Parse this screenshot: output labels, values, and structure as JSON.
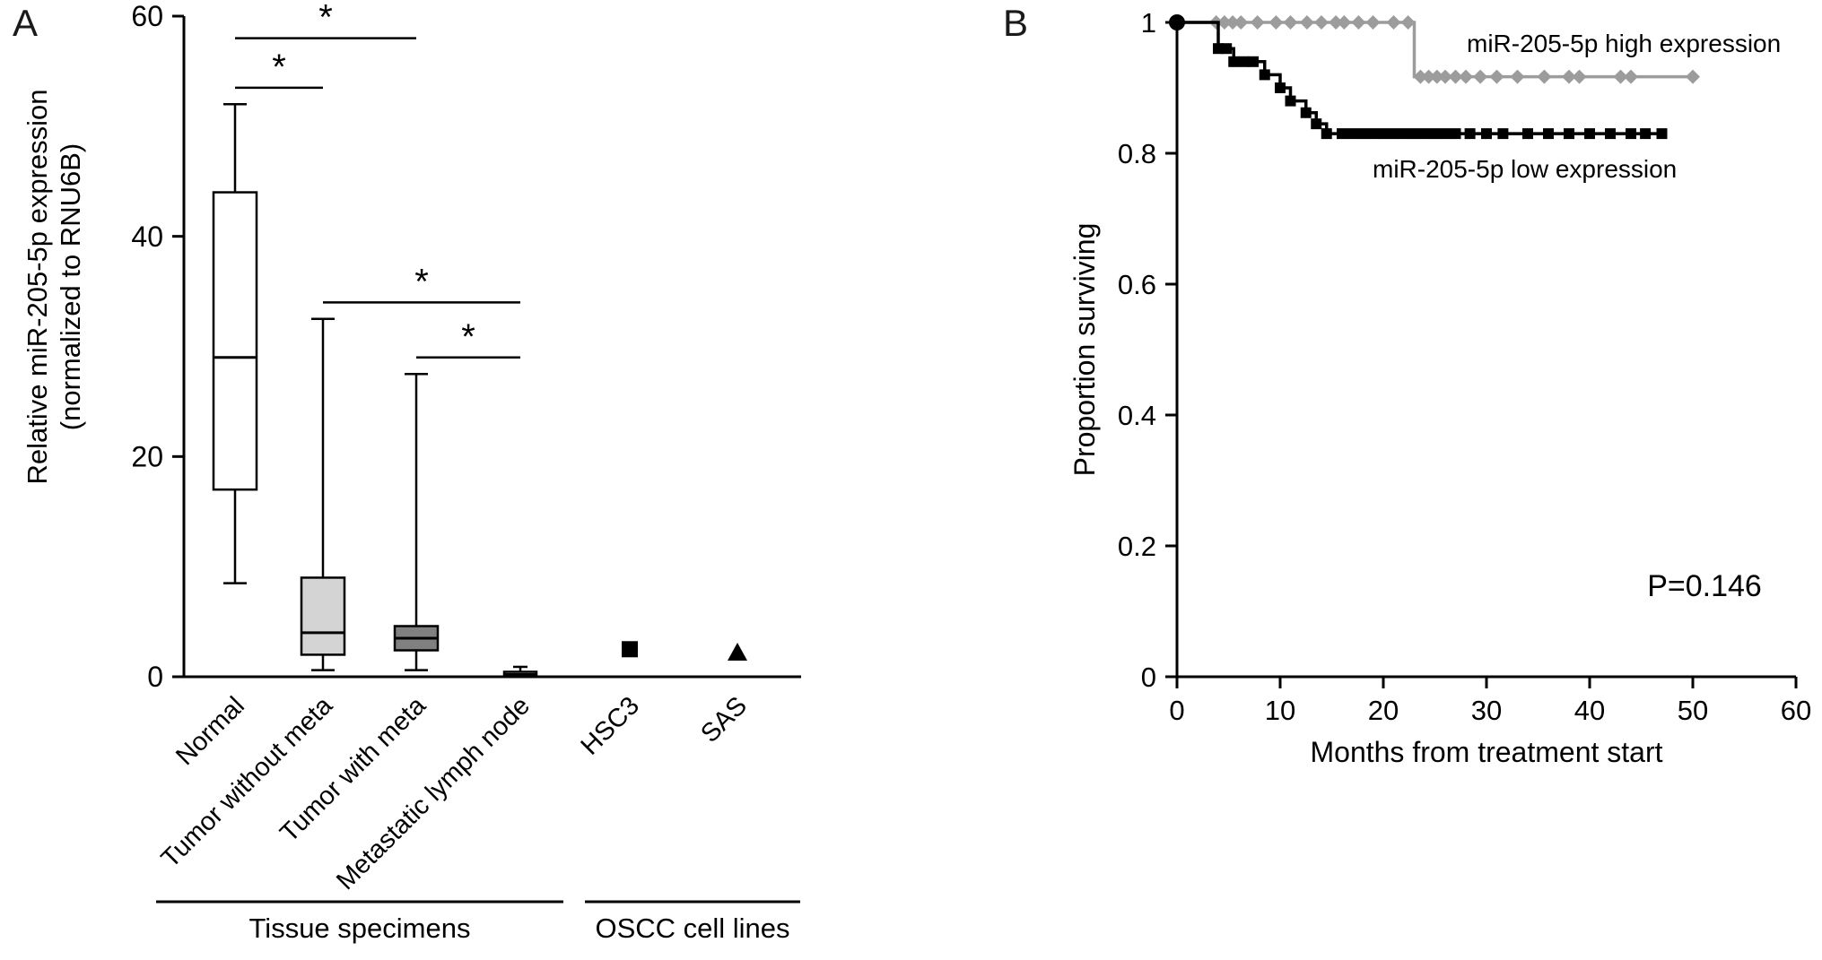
{
  "panelA": {
    "label": "A"
  },
  "panelB": {
    "label": "B"
  },
  "chart_data": [
    {
      "id": "boxplot",
      "type": "box",
      "title": "",
      "ylabel_lines": [
        "Relative miR-205-5p expression",
        "(normalized to RNU6B)"
      ],
      "ylim": [
        0,
        60
      ],
      "yticks": [
        0,
        20,
        40,
        60
      ],
      "categories": [
        "Normal",
        "Tumor without meta",
        "Tumor with meta",
        "Metastatic lymph node",
        "HSC3",
        "SAS"
      ],
      "boxes": [
        {
          "category": "Normal",
          "low": 8.5,
          "q1": 17,
          "median": 29,
          "q3": 44,
          "high": 52,
          "fill": "#ffffff"
        },
        {
          "category": "Tumor without meta",
          "low": 0.6,
          "q1": 2,
          "median": 4,
          "q3": 9,
          "high": 32.5,
          "fill": "#d4d4d4"
        },
        {
          "category": "Tumor with meta",
          "low": 0.6,
          "q1": 2.4,
          "median": 3.5,
          "q3": 4.6,
          "high": 27.5,
          "fill": "#808080"
        },
        {
          "category": "Metastatic lymph node",
          "low": 0,
          "q1": 0.05,
          "median": 0.2,
          "q3": 0.45,
          "high": 0.9,
          "fill": "#d4d4d4"
        }
      ],
      "points": [
        {
          "category": "HSC3",
          "value": 2.5,
          "marker": "square",
          "color": "#000000"
        },
        {
          "category": "SAS",
          "value": 2.2,
          "marker": "triangle",
          "color": "#000000"
        }
      ],
      "significance_brackets": [
        {
          "from": 0,
          "to": 2,
          "y": 58,
          "label": "*"
        },
        {
          "from": 0,
          "to": 1,
          "y": 53.5,
          "label": "*"
        },
        {
          "from": 1,
          "to": 3,
          "y": 34,
          "label": "*"
        },
        {
          "from": 2,
          "to": 3,
          "y": 29,
          "label": "*"
        }
      ],
      "group_rules": [
        {
          "label": "Tissue specimens",
          "from": 0,
          "to": 3
        },
        {
          "label": "OSCC cell lines",
          "from": 4,
          "to": 5
        }
      ]
    },
    {
      "id": "km",
      "type": "line",
      "xlabel": "Months from treatment start",
      "ylabel": "Proportion surviving",
      "xlim": [
        0,
        60
      ],
      "ylim": [
        0,
        1
      ],
      "xticks": [
        0,
        10,
        20,
        30,
        40,
        50,
        60
      ],
      "yticks": [
        0,
        0.2,
        0.4,
        0.6,
        0.8,
        1
      ],
      "grid": false,
      "pvalue_label": "P=0.146",
      "start_dot": [
        0,
        1
      ],
      "series": [
        {
          "name": "miR-205-5p high expression",
          "color": "#9c9c9c",
          "marker": "diamond",
          "step": true,
          "points": [
            [
              0,
              1
            ],
            [
              23,
              1
            ],
            [
              23,
              0.917
            ],
            [
              50,
              0.917
            ]
          ],
          "censor_marks": [
            [
              3.8,
              1
            ],
            [
              4.6,
              1
            ],
            [
              5.4,
              1
            ],
            [
              6.2,
              1
            ],
            [
              7.8,
              1
            ],
            [
              9.6,
              1
            ],
            [
              11,
              1
            ],
            [
              12.6,
              1
            ],
            [
              14,
              1
            ],
            [
              15.4,
              1
            ],
            [
              16.2,
              1
            ],
            [
              17.6,
              1
            ],
            [
              19,
              1
            ],
            [
              21,
              1
            ],
            [
              22.4,
              1
            ],
            [
              23.6,
              0.917
            ],
            [
              24.4,
              0.917
            ],
            [
              25.2,
              0.917
            ],
            [
              26,
              0.917
            ],
            [
              27,
              0.917
            ],
            [
              28,
              0.917
            ],
            [
              29.4,
              0.917
            ],
            [
              31,
              0.917
            ],
            [
              33,
              0.917
            ],
            [
              35.6,
              0.917
            ],
            [
              38,
              0.917
            ],
            [
              39,
              0.917
            ],
            [
              43,
              0.917
            ],
            [
              44,
              0.917
            ],
            [
              50,
              0.917
            ]
          ]
        },
        {
          "name": "miR-205-5p low expression",
          "color": "#000000",
          "marker": "square",
          "step": true,
          "points": [
            [
              0,
              1
            ],
            [
              4,
              1
            ],
            [
              4,
              0.96
            ],
            [
              5.5,
              0.96
            ],
            [
              5.5,
              0.94
            ],
            [
              8.5,
              0.94
            ],
            [
              8.5,
              0.92
            ],
            [
              10,
              0.92
            ],
            [
              10,
              0.9
            ],
            [
              11,
              0.9
            ],
            [
              11,
              0.88
            ],
            [
              12.5,
              0.88
            ],
            [
              12.5,
              0.862
            ],
            [
              13.5,
              0.862
            ],
            [
              13.5,
              0.845
            ],
            [
              14.5,
              0.845
            ],
            [
              14.5,
              0.83
            ],
            [
              47,
              0.83
            ]
          ],
          "censor_marks": [
            [
              4,
              0.96
            ],
            [
              4.8,
              0.96
            ],
            [
              5.5,
              0.94
            ],
            [
              6.5,
              0.94
            ],
            [
              7.4,
              0.94
            ],
            [
              8.5,
              0.92
            ],
            [
              10,
              0.9
            ],
            [
              11,
              0.88
            ],
            [
              12.5,
              0.862
            ],
            [
              13.5,
              0.845
            ],
            [
              14.5,
              0.83
            ],
            [
              16,
              0.83
            ],
            [
              17,
              0.83
            ],
            [
              18,
              0.83
            ],
            [
              19,
              0.83
            ],
            [
              20,
              0.83
            ],
            [
              21,
              0.83
            ],
            [
              22,
              0.83
            ],
            [
              23,
              0.83
            ],
            [
              24,
              0.83
            ],
            [
              25,
              0.83
            ],
            [
              26,
              0.83
            ],
            [
              27,
              0.83
            ],
            [
              28.4,
              0.83
            ],
            [
              30,
              0.83
            ],
            [
              31.6,
              0.83
            ],
            [
              34,
              0.83
            ],
            [
              36,
              0.83
            ],
            [
              38,
              0.83
            ],
            [
              40,
              0.83
            ],
            [
              42,
              0.83
            ],
            [
              44,
              0.83
            ],
            [
              45.4,
              0.83
            ],
            [
              47,
              0.83
            ]
          ]
        }
      ]
    }
  ]
}
